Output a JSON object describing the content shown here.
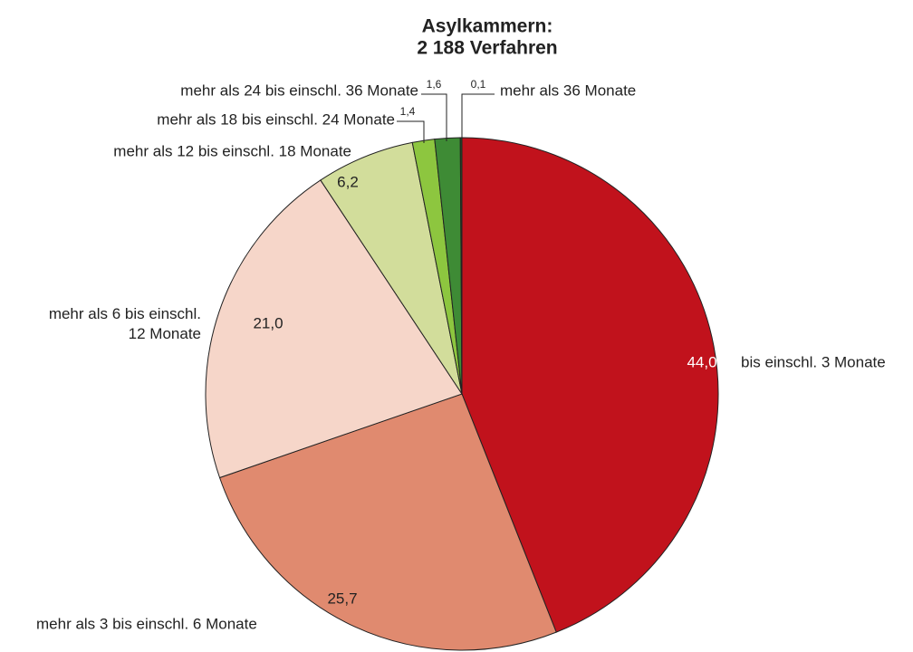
{
  "chart_data": {
    "type": "pie",
    "title": "Asylkammern:",
    "subtitle": "2 188 Verfahren",
    "categories": [
      "bis einschl. 3 Monate",
      "mehr als 3 bis einschl. 6 Monate",
      "mehr als 6 bis einschl.\n12 Monate",
      "mehr als 12 bis einschl. 18 Monate",
      "mehr als 18 bis einschl. 24 Monate",
      "mehr als 24 bis einschl. 36 Monate",
      "mehr als 36 Monate"
    ],
    "values": [
      44.0,
      25.7,
      21.0,
      6.2,
      1.4,
      1.6,
      0.1
    ],
    "value_labels": [
      "44,0",
      "25,7",
      "21,0",
      "6,2",
      "1,4",
      "1,6",
      "0,1"
    ],
    "colors": [
      "#c1121c",
      "#e08a6f",
      "#f6d6c9",
      "#d2dd9b",
      "#8dc63f",
      "#3e8b35",
      "#1e5a28"
    ]
  }
}
